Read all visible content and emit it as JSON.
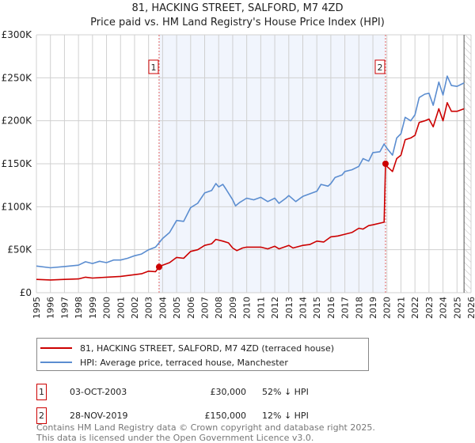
{
  "chart_data": {
    "type": "line",
    "title": "81, HACKING STREET, SALFORD, M7 4ZD",
    "subtitle": "Price paid vs. HM Land Registry's House Price Index (HPI)",
    "xlim": [
      1995,
      2026
    ],
    "ylim": [
      0,
      300000
    ],
    "y_ticks": [
      {
        "v": 0,
        "label": "£0"
      },
      {
        "v": 50000,
        "label": "£50K"
      },
      {
        "v": 100000,
        "label": "£100K"
      },
      {
        "v": 150000,
        "label": "£150K"
      },
      {
        "v": 200000,
        "label": "£200K"
      },
      {
        "v": 250000,
        "label": "£250K"
      },
      {
        "v": 300000,
        "label": "£300K"
      }
    ],
    "x_ticks": [
      "1995",
      "1996",
      "1997",
      "1998",
      "1999",
      "2000",
      "2001",
      "2002",
      "2003",
      "2004",
      "2005",
      "2006",
      "2007",
      "2008",
      "2009",
      "2010",
      "2011",
      "2012",
      "2013",
      "2014",
      "2015",
      "2016",
      "2017",
      "2018",
      "2019",
      "2020",
      "2021",
      "2022",
      "2023",
      "2024",
      "2025",
      "2026"
    ],
    "grid": true,
    "shaded_range": [
      2003.75,
      2019.9
    ],
    "hatched_from": 2025.5,
    "series": [
      {
        "name": "81, HACKING STREET, SALFORD, M7 4ZD (terraced house)",
        "color": "#cc0000",
        "x": [
          1995,
          1996,
          1997,
          1998,
          1998.5,
          1999,
          2000,
          2001,
          2002,
          2002.5,
          2003,
          2003.5,
          2003.75,
          2004,
          2004.5,
          2005,
          2005.5,
          2006,
          2006.5,
          2007,
          2007.5,
          2007.8,
          2008.3,
          2008.7,
          2009,
          2009.3,
          2009.7,
          2010,
          2011,
          2011.5,
          2012,
          2012.3,
          2013,
          2013.3,
          2014,
          2014.5,
          2015,
          2015.5,
          2016,
          2016.5,
          2017,
          2017.5,
          2018,
          2018.3,
          2018.7,
          2019,
          2019.8,
          2019.9,
          2020,
          2020.4,
          2020.7,
          2021,
          2021.3,
          2021.7,
          2022,
          2022.3,
          2022.7,
          2023,
          2023.3,
          2023.7,
          2024,
          2024.3,
          2024.6,
          2025,
          2025.5
        ],
        "y": [
          15500,
          14800,
          15500,
          16000,
          18000,
          17000,
          18000,
          19000,
          21000,
          22000,
          25000,
          24500,
          30000,
          32000,
          35000,
          41000,
          40000,
          48000,
          50000,
          55000,
          57000,
          62000,
          60000,
          58000,
          52000,
          49000,
          52000,
          53000,
          53000,
          51000,
          54000,
          51000,
          55000,
          52000,
          55000,
          56000,
          60000,
          59000,
          65000,
          66000,
          68000,
          70000,
          75000,
          74000,
          78000,
          79000,
          82000,
          150000,
          147000,
          141000,
          156000,
          160000,
          178000,
          180000,
          183000,
          198000,
          200000,
          202000,
          193000,
          214000,
          200000,
          221000,
          211000,
          211000,
          214000
        ]
      },
      {
        "name": "HPI: Average price, terraced house, Manchester",
        "color": "#5b8dd0",
        "x": [
          1995,
          1996,
          1997,
          1998,
          1998.5,
          1999,
          1999.5,
          2000,
          2000.5,
          2001,
          2001.5,
          2002,
          2002.5,
          2003,
          2003.5,
          2004,
          2004.5,
          2005,
          2005.5,
          2006,
          2006.5,
          2007,
          2007.5,
          2007.8,
          2008,
          2008.3,
          2008.5,
          2009,
          2009.2,
          2009.5,
          2010,
          2010.5,
          2011,
          2011.5,
          2012,
          2012.3,
          2012.8,
          2013,
          2013.5,
          2014,
          2014.5,
          2015,
          2015.3,
          2015.8,
          2016,
          2016.3,
          2016.8,
          2017,
          2017.5,
          2018,
          2018.3,
          2018.7,
          2019,
          2019.5,
          2019.8,
          2020,
          2020.4,
          2020.7,
          2021,
          2021.3,
          2021.7,
          2022,
          2022.3,
          2022.7,
          2023,
          2023.3,
          2023.7,
          2024,
          2024.3,
          2024.6,
          2025,
          2025.5
        ],
        "y": [
          31000,
          29000,
          30500,
          32000,
          36000,
          34000,
          36500,
          35000,
          38000,
          38000,
          40000,
          43000,
          45000,
          50000,
          53000,
          63000,
          70000,
          84000,
          83000,
          99000,
          104000,
          116000,
          119000,
          127000,
          123000,
          126000,
          121000,
          108000,
          101000,
          105000,
          110000,
          108000,
          111000,
          106000,
          110000,
          104000,
          110000,
          113000,
          106000,
          112000,
          115000,
          118000,
          126000,
          124000,
          127000,
          134000,
          137000,
          141000,
          143000,
          147000,
          156000,
          153000,
          163000,
          164000,
          173000,
          168000,
          160000,
          180000,
          185000,
          204000,
          200000,
          207000,
          227000,
          231000,
          232000,
          218000,
          245000,
          230000,
          252000,
          241000,
          240000,
          244000
        ]
      }
    ],
    "sales": [
      {
        "id": "1",
        "x": 2003.75,
        "price": 30000,
        "date": "03-OCT-2003",
        "price_label": "£30,000",
        "hpi": "52% ↓ HPI"
      },
      {
        "id": "2",
        "x": 2019.9,
        "price": 150000,
        "date": "28-NOV-2019",
        "price_label": "£150,000",
        "hpi": "12% ↓ HPI"
      }
    ]
  },
  "footer": {
    "line1": "Contains HM Land Registry data © Crown copyright and database right 2025.",
    "line2": "This data is licensed under the Open Government Licence v3.0."
  }
}
